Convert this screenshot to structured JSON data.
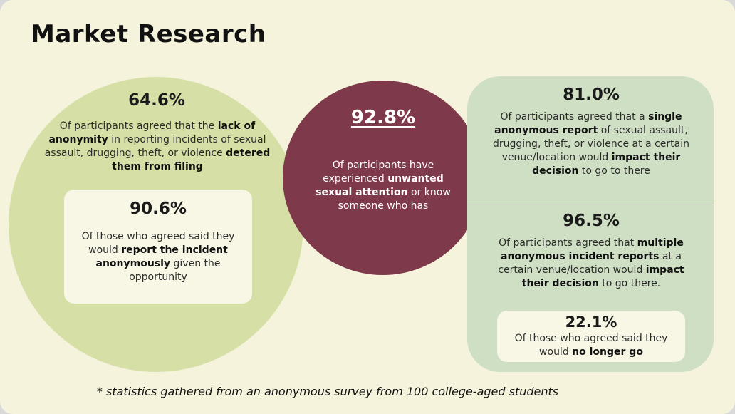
{
  "title": "Market Research",
  "colors": {
    "background": "#f6f3dc",
    "left_circle": "#d6e0a6",
    "middle_circle": "#7e3a4b",
    "right_panel": "#cfdfc4",
    "inner_box": "#f8f6e4"
  },
  "left": {
    "stat": "64.6%",
    "p1": "Of participants agreed that the ",
    "b1": "lack of anonymity",
    "p2": " in reporting incidents of sexual assault, drugging, theft, or violence ",
    "b2": "detered them from filing",
    "inner": {
      "stat": "90.6%",
      "p1": "Of those who agreed said they would ",
      "b1": "report the incident anonymously",
      "p2": " given the opportunity"
    }
  },
  "middle": {
    "stat": "92.8%",
    "p1": "Of participants have experienced ",
    "b1": "unwanted sexual attention",
    "p2": " or know someone who has"
  },
  "right_top": {
    "stat": "81.0%",
    "p1": "Of participants agreed that a ",
    "b1": "single anonymous report",
    "p2": " of sexual assault, drugging, theft, or violence at a certain venue/location would ",
    "b2": "impact their decision",
    "p3": " to go to there"
  },
  "right_bottom": {
    "stat": "96.5%",
    "p1": "Of participants agreed that ",
    "b1": "multiple anonymous incident reports",
    "p2": " at a certain venue/location would ",
    "b2": "impact their decision",
    "p3": " to go there.",
    "inner": {
      "stat": "22.1%",
      "p1": "Of those who agreed said they would ",
      "b1": "no longer go"
    }
  },
  "footnote": "* statistics gathered from an anonymous survey from 100 college-aged students"
}
